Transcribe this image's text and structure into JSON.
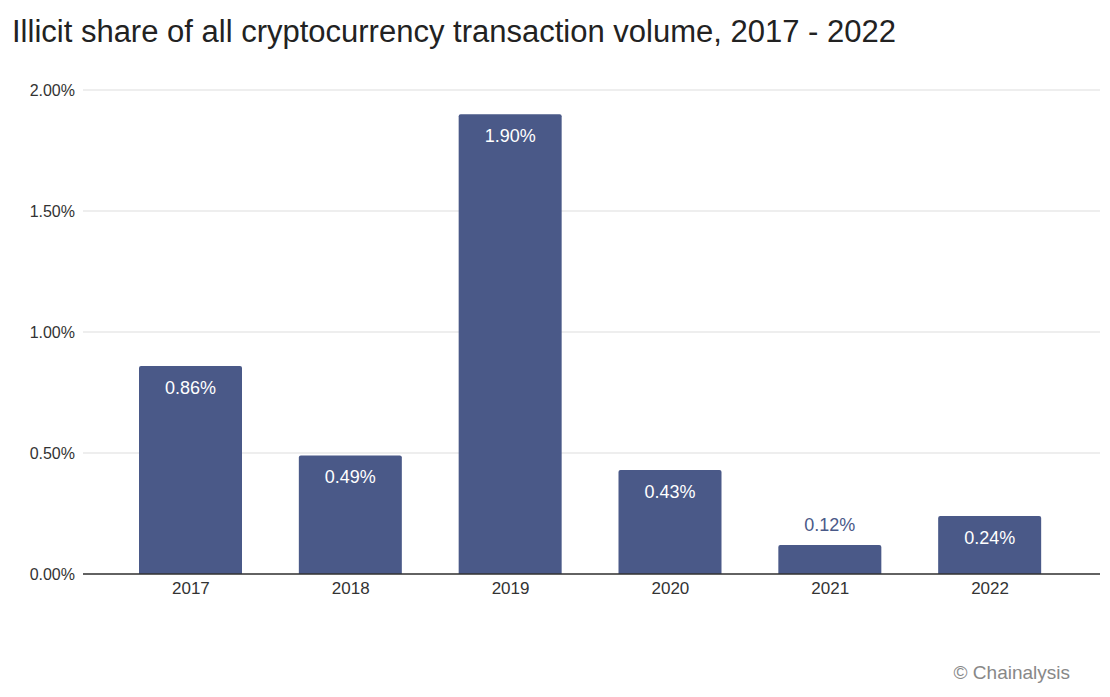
{
  "chart_data": {
    "type": "bar",
    "title": "Illicit share of all cryptocurrency transaction volume, 2017 - 2022",
    "annotations": [
      "© Chainalysis"
    ],
    "categories": [
      "2017",
      "2018",
      "2019",
      "2020",
      "2021",
      "2022"
    ],
    "values": [
      0.86,
      0.49,
      1.9,
      0.43,
      0.12,
      0.24
    ],
    "value_labels": [
      "0.86%",
      "0.49%",
      "1.90%",
      "0.43%",
      "0.12%",
      "0.24%"
    ],
    "color": "#4a5988",
    "ylim": [
      0,
      2
    ],
    "yticks": [
      {
        "value": 0,
        "label": "0.00%"
      },
      {
        "value": 0.5,
        "label": "0.50%"
      },
      {
        "value": 1,
        "label": "1.00%"
      },
      {
        "value": 1.5,
        "label": "1.50%"
      },
      {
        "value": 2,
        "label": "2.00%"
      }
    ],
    "grid": true,
    "data_labels": true
  }
}
